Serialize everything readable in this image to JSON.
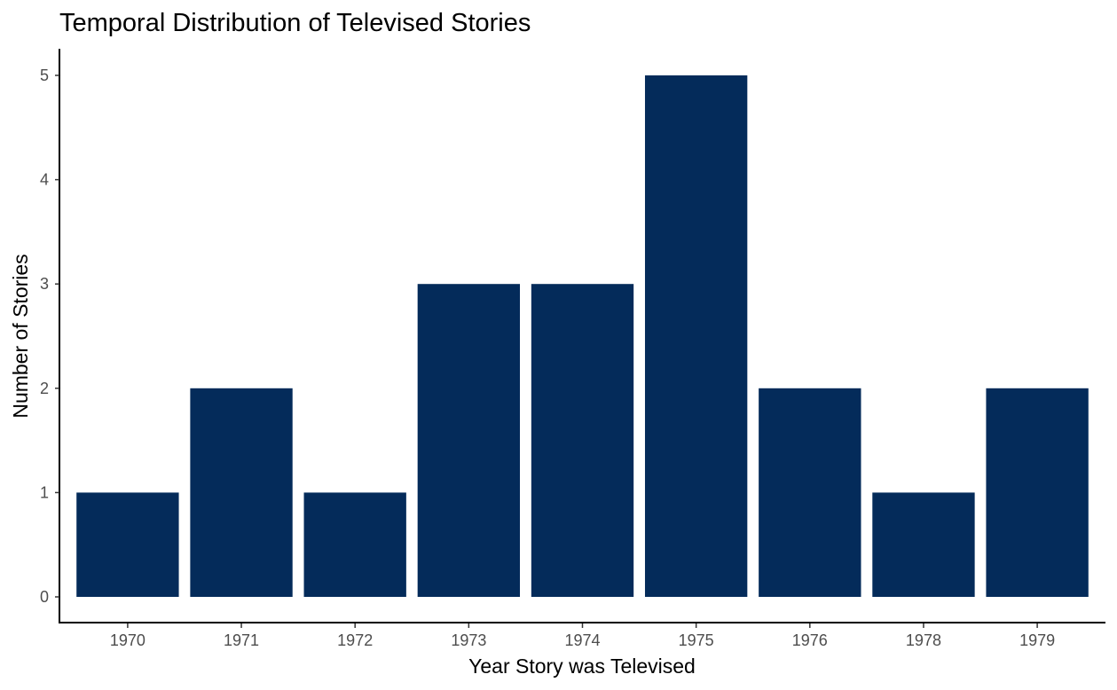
{
  "chart_data": {
    "type": "bar",
    "title": "Temporal Distribution of Televised Stories",
    "xlabel": "Year Story was Televised",
    "ylabel": "Number of Stories",
    "categories": [
      "1970",
      "1971",
      "1972",
      "1973",
      "1974",
      "1975",
      "1976",
      "1978",
      "1979"
    ],
    "values": [
      1,
      2,
      1,
      3,
      3,
      5,
      2,
      1,
      2
    ],
    "ylim": [
      0,
      5
    ],
    "yticks": [
      0,
      1,
      2,
      3,
      4,
      5
    ],
    "grid": false,
    "legend": "none",
    "bar_color": "#042b5a"
  }
}
